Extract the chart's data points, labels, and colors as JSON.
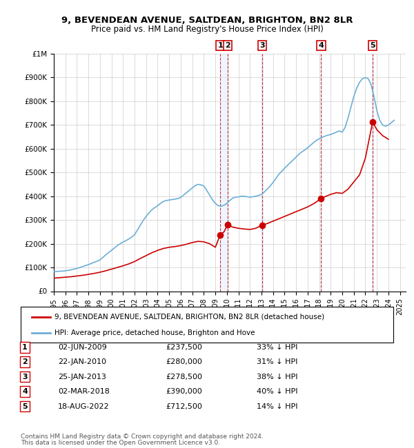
{
  "title1": "9, BEVENDEAN AVENUE, SALTDEAN, BRIGHTON, BN2 8LR",
  "title2": "Price paid vs. HM Land Registry's House Price Index (HPI)",
  "ylabel": "",
  "xlim_start": 1995.0,
  "xlim_end": 2025.5,
  "ylim_min": 0,
  "ylim_max": 1000000,
  "yticks": [
    0,
    100000,
    200000,
    300000,
    400000,
    500000,
    600000,
    700000,
    800000,
    900000,
    1000000
  ],
  "ytick_labels": [
    "£0",
    "£100K",
    "£200K",
    "£300K",
    "£400K",
    "£500K",
    "£600K",
    "£700K",
    "£800K",
    "£900K",
    "£1M"
  ],
  "xticks": [
    1995,
    1996,
    1997,
    1998,
    1999,
    2000,
    2001,
    2002,
    2003,
    2004,
    2005,
    2006,
    2007,
    2008,
    2009,
    2010,
    2011,
    2012,
    2013,
    2014,
    2015,
    2016,
    2017,
    2018,
    2019,
    2020,
    2021,
    2022,
    2023,
    2024,
    2025
  ],
  "hpi_color": "#6baed6",
  "price_color": "#cc0000",
  "sale_marker_color": "#cc0000",
  "transaction_line_color": "#cc0000",
  "transaction_bg_color": "#ddeeff",
  "transactions": [
    {
      "num": 1,
      "date": "02-JUN-2009",
      "x": 2009.42,
      "price": 237500,
      "label": "£237,500",
      "pct": "33% ↓ HPI"
    },
    {
      "num": 2,
      "date": "22-JAN-2010",
      "x": 2010.06,
      "price": 280000,
      "label": "£280,000",
      "pct": "31% ↓ HPI"
    },
    {
      "num": 3,
      "date": "25-JAN-2013",
      "x": 2013.06,
      "price": 278500,
      "label": "£278,500",
      "pct": "38% ↓ HPI"
    },
    {
      "num": 4,
      "date": "02-MAR-2018",
      "x": 2018.17,
      "price": 390000,
      "label": "£390,000",
      "pct": "40% ↓ HPI"
    },
    {
      "num": 5,
      "date": "18-AUG-2022",
      "x": 2022.63,
      "price": 712500,
      "label": "£712,500",
      "pct": "14% ↓ HPI"
    }
  ],
  "legend_label_red": "9, BEVENDEAN AVENUE, SALTDEAN, BRIGHTON, BN2 8LR (detached house)",
  "legend_label_blue": "HPI: Average price, detached house, Brighton and Hove",
  "footer1": "Contains HM Land Registry data © Crown copyright and database right 2024.",
  "footer2": "This data is licensed under the Open Government Licence v3.0.",
  "hpi_data_x": [
    1995.0,
    1995.25,
    1995.5,
    1995.75,
    1996.0,
    1996.25,
    1996.5,
    1996.75,
    1997.0,
    1997.25,
    1997.5,
    1997.75,
    1998.0,
    1998.25,
    1998.5,
    1998.75,
    1999.0,
    1999.25,
    1999.5,
    1999.75,
    2000.0,
    2000.25,
    2000.5,
    2000.75,
    2001.0,
    2001.25,
    2001.5,
    2001.75,
    2002.0,
    2002.25,
    2002.5,
    2002.75,
    2003.0,
    2003.25,
    2003.5,
    2003.75,
    2004.0,
    2004.25,
    2004.5,
    2004.75,
    2005.0,
    2005.25,
    2005.5,
    2005.75,
    2006.0,
    2006.25,
    2006.5,
    2006.75,
    2007.0,
    2007.25,
    2007.5,
    2007.75,
    2008.0,
    2008.25,
    2008.5,
    2008.75,
    2009.0,
    2009.25,
    2009.5,
    2009.75,
    2010.0,
    2010.25,
    2010.5,
    2010.75,
    2011.0,
    2011.25,
    2011.5,
    2011.75,
    2012.0,
    2012.25,
    2012.5,
    2012.75,
    2013.0,
    2013.25,
    2013.5,
    2013.75,
    2014.0,
    2014.25,
    2014.5,
    2014.75,
    2015.0,
    2015.25,
    2015.5,
    2015.75,
    2016.0,
    2016.25,
    2016.5,
    2016.75,
    2017.0,
    2017.25,
    2017.5,
    2017.75,
    2018.0,
    2018.25,
    2018.5,
    2018.75,
    2019.0,
    2019.25,
    2019.5,
    2019.75,
    2020.0,
    2020.25,
    2020.5,
    2020.75,
    2021.0,
    2021.25,
    2021.5,
    2021.75,
    2022.0,
    2022.25,
    2022.5,
    2022.75,
    2023.0,
    2023.25,
    2023.5,
    2023.75,
    2024.0,
    2024.25,
    2024.5
  ],
  "hpi_data_y": [
    82000,
    83000,
    84000,
    84500,
    86000,
    88000,
    90000,
    93000,
    96000,
    100000,
    104000,
    108000,
    112000,
    117000,
    122000,
    126000,
    132000,
    142000,
    153000,
    163000,
    172000,
    182000,
    192000,
    200000,
    207000,
    213000,
    220000,
    228000,
    238000,
    258000,
    278000,
    298000,
    315000,
    330000,
    343000,
    352000,
    360000,
    370000,
    378000,
    382000,
    384000,
    386000,
    388000,
    390000,
    395000,
    405000,
    415000,
    425000,
    435000,
    445000,
    450000,
    448000,
    443000,
    425000,
    405000,
    385000,
    370000,
    360000,
    358000,
    362000,
    370000,
    382000,
    392000,
    396000,
    397000,
    400000,
    400000,
    398000,
    396000,
    398000,
    400000,
    403000,
    408000,
    418000,
    430000,
    443000,
    458000,
    475000,
    492000,
    505000,
    518000,
    530000,
    542000,
    553000,
    565000,
    577000,
    587000,
    595000,
    604000,
    615000,
    625000,
    635000,
    642000,
    648000,
    653000,
    657000,
    660000,
    665000,
    670000,
    675000,
    670000,
    690000,
    730000,
    775000,
    820000,
    855000,
    880000,
    895000,
    900000,
    895000,
    870000,
    820000,
    760000,
    720000,
    700000,
    695000,
    700000,
    710000,
    720000
  ],
  "price_data_x": [
    1995.0,
    1995.5,
    1996.0,
    1996.5,
    1997.0,
    1997.5,
    1998.0,
    1998.5,
    1999.0,
    1999.5,
    2000.0,
    2000.5,
    2001.0,
    2001.5,
    2002.0,
    2002.5,
    2003.0,
    2003.5,
    2004.0,
    2004.5,
    2005.0,
    2005.5,
    2006.0,
    2006.5,
    2007.0,
    2007.5,
    2008.0,
    2008.5,
    2009.0,
    2009.42,
    2009.75,
    2010.06,
    2010.5,
    2011.0,
    2011.5,
    2012.0,
    2012.5,
    2013.06,
    2013.5,
    2014.0,
    2014.5,
    2015.0,
    2015.5,
    2016.0,
    2016.5,
    2017.0,
    2017.5,
    2018.17,
    2018.5,
    2019.0,
    2019.5,
    2020.0,
    2020.5,
    2021.0,
    2021.5,
    2022.0,
    2022.63,
    2023.0,
    2023.5,
    2024.0
  ],
  "price_data_y": [
    55000,
    57000,
    59000,
    61000,
    64000,
    67000,
    71000,
    75000,
    80000,
    86000,
    93000,
    100000,
    107000,
    115000,
    125000,
    138000,
    150000,
    162000,
    172000,
    180000,
    185000,
    188000,
    192000,
    198000,
    205000,
    210000,
    208000,
    200000,
    185000,
    237500,
    250000,
    280000,
    270000,
    265000,
    262000,
    260000,
    265000,
    278500,
    285000,
    295000,
    305000,
    315000,
    325000,
    335000,
    345000,
    355000,
    368000,
    390000,
    398000,
    408000,
    415000,
    412000,
    430000,
    460000,
    490000,
    560000,
    712500,
    680000,
    655000,
    640000
  ]
}
